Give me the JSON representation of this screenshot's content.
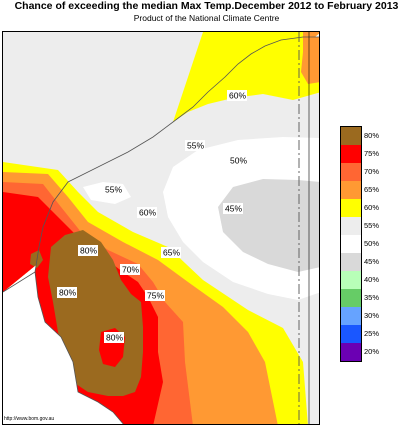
{
  "header": {
    "title": "Chance of exceeding the median Max Temp.December 2012 to February 2013",
    "subtitle": "Product of the National Climate Centre"
  },
  "source_url": "http://www.bom.gov.au",
  "colors": {
    "c80": "#9b6a1f",
    "c75": "#ff0000",
    "c70": "#ff6633",
    "c65": "#ff9933",
    "c60": "#ffff00",
    "c55": "#ededed",
    "c50": "#ffffff",
    "c45": "#d9d9d9",
    "c40": "#b8ffb8",
    "c35": "#66cc66",
    "c30": "#66a3ff",
    "c25": "#1a57ff",
    "c20": "#6b00b3",
    "coast": "#555555",
    "border_dash": "#555555"
  },
  "map_labels": [
    {
      "id": "label-60-north",
      "text": "60%"
    },
    {
      "id": "label-55-central",
      "text": "55%"
    },
    {
      "id": "label-55-west",
      "text": "55%"
    },
    {
      "id": "label-50",
      "text": "50%"
    },
    {
      "id": "label-45",
      "text": "45%"
    },
    {
      "id": "label-60-west",
      "text": "60%"
    },
    {
      "id": "label-65",
      "text": "65%"
    },
    {
      "id": "label-80-north",
      "text": "80%"
    },
    {
      "id": "label-70",
      "text": "70%"
    },
    {
      "id": "label-80-west",
      "text": "80%"
    },
    {
      "id": "label-75",
      "text": "75%"
    },
    {
      "id": "label-80-south",
      "text": "80%"
    }
  ],
  "legend": [
    {
      "label": "80%",
      "color": "#9b6a1f"
    },
    {
      "label": "75%",
      "color": "#ff0000"
    },
    {
      "label": "70%",
      "color": "#ff6633"
    },
    {
      "label": "65%",
      "color": "#ff9933"
    },
    {
      "label": "60%",
      "color": "#ffff00"
    },
    {
      "label": "55%",
      "color": "#ededed"
    },
    {
      "label": "50%",
      "color": "#ffffff"
    },
    {
      "label": "45%",
      "color": "#d9d9d9"
    },
    {
      "label": "40%",
      "color": "#b8ffb8"
    },
    {
      "label": "35%",
      "color": "#66cc66"
    },
    {
      "label": "30%",
      "color": "#66a3ff"
    },
    {
      "label": "25%",
      "color": "#1a57ff"
    },
    {
      "label": "20%",
      "color": "#6b00b3"
    }
  ]
}
